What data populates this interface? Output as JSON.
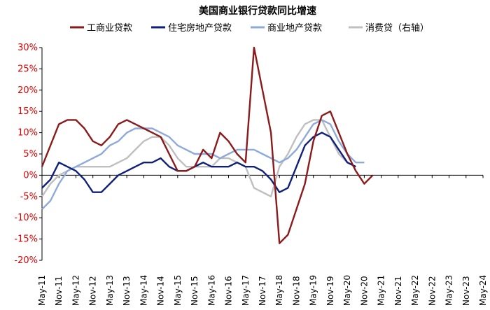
{
  "chart_data": {
    "type": "line",
    "title": "美国商业银行贷款同比增速",
    "xlabel": "",
    "ylabel": "",
    "ylim": [
      -20,
      30
    ],
    "y_ticks": [
      -20,
      -15,
      -10,
      -5,
      0,
      5,
      10,
      15,
      20,
      25,
      30
    ],
    "y_tick_labels": [
      "-20%",
      "-15%",
      "-10%",
      "-5%",
      "0%",
      "5%",
      "10%",
      "15%",
      "20%",
      "25%",
      "30%"
    ],
    "x_range": [
      "May-11",
      "May-24"
    ],
    "x_tick_labels": [
      "May-11",
      "Nov-11",
      "May-12",
      "Nov-12",
      "May-13",
      "Nov-13",
      "May-14",
      "Nov-14",
      "May-15",
      "Nov-15",
      "May-16",
      "Nov-16",
      "May-17",
      "Nov-17",
      "May-18",
      "Nov-18",
      "May-19",
      "Nov-19",
      "May-20",
      "Nov-20",
      "May-21",
      "Nov-21",
      "May-22",
      "Nov-22",
      "May-23",
      "Nov-23",
      "May-24"
    ],
    "legend_position": "top",
    "series": [
      {
        "name": "工商业贷款",
        "color": "#8b1a1a",
        "x": [
          0,
          0.5,
          1,
          1.5,
          2,
          2.5,
          3,
          3.5,
          4,
          4.5,
          5,
          5.5,
          6,
          6.5,
          7,
          7.5,
          8,
          8.5,
          9,
          9.5,
          10,
          10.5,
          11,
          11.5,
          12,
          12.5,
          13,
          13.5,
          14,
          14.5,
          15,
          15.5,
          16,
          16.5,
          17,
          17.5,
          18,
          18.5,
          19,
          19.5,
          20,
          20.5,
          21,
          21.5,
          22,
          22.5,
          23,
          23.5,
          24,
          24.5,
          25,
          25.5,
          26
        ],
        "values": [
          2,
          7,
          12,
          13,
          13,
          11,
          8,
          7,
          9,
          12,
          13,
          12,
          11,
          10,
          9,
          5,
          1,
          1,
          2,
          6,
          4,
          10,
          8,
          5,
          3,
          30,
          20,
          10,
          -16,
          -14,
          -8,
          -2,
          8,
          14,
          15,
          10,
          5,
          1,
          -2,
          0,
          null,
          null,
          null,
          null,
          null,
          null,
          null,
          null,
          null,
          null,
          null,
          null,
          null
        ]
      },
      {
        "name": "住宅房地产贷款",
        "color": "#10207a",
        "x": [
          0,
          0.5,
          1,
          1.5,
          2,
          2.5,
          3,
          3.5,
          4,
          4.5,
          5,
          5.5,
          6,
          6.5,
          7,
          7.5,
          8,
          8.5,
          9,
          9.5,
          10,
          10.5,
          11,
          11.5,
          12,
          12.5,
          13,
          13.5,
          14,
          14.5,
          15,
          15.5,
          16,
          16.5,
          17,
          17.5,
          18,
          18.5,
          19,
          19.5,
          20,
          20.5,
          21,
          21.5,
          22,
          22.5,
          23,
          23.5,
          24,
          24.5,
          25,
          25.5,
          26
        ],
        "values": [
          -3,
          -1,
          3,
          2,
          1,
          -1,
          -4,
          -4,
          -2,
          0,
          1,
          2,
          3,
          3,
          4,
          2,
          1,
          1,
          2,
          3,
          2,
          2,
          2,
          3,
          2,
          2,
          1,
          -1,
          -4,
          -3,
          2,
          7,
          9,
          10,
          9,
          6,
          3,
          2,
          null,
          null,
          null,
          null,
          null,
          null,
          null,
          null,
          null,
          null,
          null,
          null,
          null,
          null,
          null
        ]
      },
      {
        "name": "商业地产贷款",
        "color": "#8eaadb",
        "x": [
          0,
          0.5,
          1,
          1.5,
          2,
          2.5,
          3,
          3.5,
          4,
          4.5,
          5,
          5.5,
          6,
          6.5,
          7,
          7.5,
          8,
          8.5,
          9,
          9.5,
          10,
          10.5,
          11,
          11.5,
          12,
          12.5,
          13,
          13.5,
          14,
          14.5,
          15,
          15.5,
          16,
          16.5,
          17,
          17.5,
          18,
          18.5,
          19,
          19.5,
          20,
          20.5,
          21,
          21.5,
          22,
          22.5,
          23,
          23.5,
          24,
          24.5,
          25,
          25.5,
          26
        ],
        "values": [
          -8,
          -6,
          -2,
          1,
          2,
          3,
          4,
          5,
          7,
          8,
          10,
          11,
          11,
          11,
          10,
          9,
          7,
          6,
          5,
          5,
          5,
          4,
          5,
          6,
          6,
          6,
          5,
          4,
          3,
          4,
          6,
          9,
          12,
          13,
          12,
          8,
          5,
          3,
          3,
          null,
          null,
          null,
          null,
          null,
          null,
          null,
          null,
          null,
          null,
          null,
          null,
          null,
          null
        ]
      },
      {
        "name": "消费贷（右轴）",
        "color": "#bfbfbf",
        "x": [
          0,
          0.5,
          1,
          1.5,
          2,
          2.5,
          3,
          3.5,
          4,
          4.5,
          5,
          5.5,
          6,
          6.5,
          7,
          7.5,
          8,
          8.5,
          9,
          9.5,
          10,
          10.5,
          11,
          11.5,
          12,
          12.5,
          13,
          13.5,
          14,
          14.5,
          15,
          15.5,
          16,
          16.5,
          17,
          17.5,
          18,
          18.5,
          19,
          19.5,
          20,
          20.5,
          21,
          21.5,
          22,
          22.5,
          23,
          23.5,
          24,
          24.5,
          25,
          25.5,
          26
        ],
        "values": [
          -5,
          -2,
          0,
          1,
          2,
          2,
          2,
          2,
          2,
          3,
          4,
          6,
          8,
          9,
          9,
          7,
          4,
          2,
          2,
          2,
          2,
          4,
          4,
          3,
          2,
          -3,
          -4,
          -5,
          2,
          5,
          9,
          12,
          13,
          13,
          9,
          5,
          3,
          2,
          null,
          null,
          null,
          null,
          null,
          null,
          null,
          null,
          null,
          null,
          null,
          null,
          null,
          null,
          null
        ]
      }
    ]
  }
}
